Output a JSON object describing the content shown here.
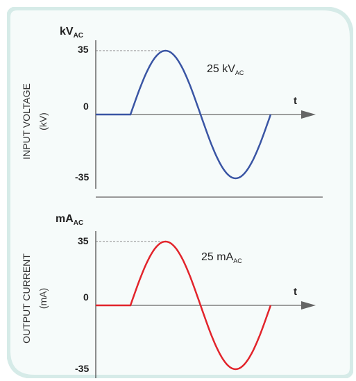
{
  "colors": {
    "voltage_line": "#3a55a4",
    "current_line": "#e2242b",
    "axis": "#444444",
    "card_border": "#d6ebe8",
    "card_fill": "#f6fbfa"
  },
  "top_panel": {
    "unit_main": "kV",
    "unit_sub": "AC",
    "ylabel_line1": "INPUT VOLTAGE",
    "ylabel_line2": "(kV)",
    "tick_top": "35",
    "tick_zero": "0",
    "tick_bottom": "-35",
    "t_label": "t",
    "annotation_main": "25 kV",
    "annotation_sub": "AC"
  },
  "bottom_panel": {
    "unit_main": "mA",
    "unit_sub": "AC",
    "ylabel_line1": "OUTPUT CURRENT",
    "ylabel_line2": "(mA)",
    "tick_top": "35",
    "tick_zero": "0",
    "tick_bottom": "-35",
    "t_label": "t",
    "annotation_main": "25 mA",
    "annotation_sub": "AC"
  },
  "chart_data": [
    {
      "type": "line",
      "title": "",
      "ylabel": "INPUT VOLTAGE (kV)",
      "xlabel": "t",
      "y_unit": "kV AC",
      "ylim": [
        -35,
        35
      ],
      "series": [
        {
          "name": "",
          "shape": "flat zero then one full sine cycle",
          "amplitude": 35
        }
      ]
    },
    {
      "type": "line",
      "title": "",
      "ylabel": "OUTPUT CURRENT (mA)",
      "xlabel": "t",
      "y_unit": "mA AC",
      "ylim": [
        -35,
        35
      ],
      "series": [
        {
          "name": "",
          "shape": "flat zero then one full sine cycle",
          "amplitude": 35
        }
      ]
    }
  ]
}
